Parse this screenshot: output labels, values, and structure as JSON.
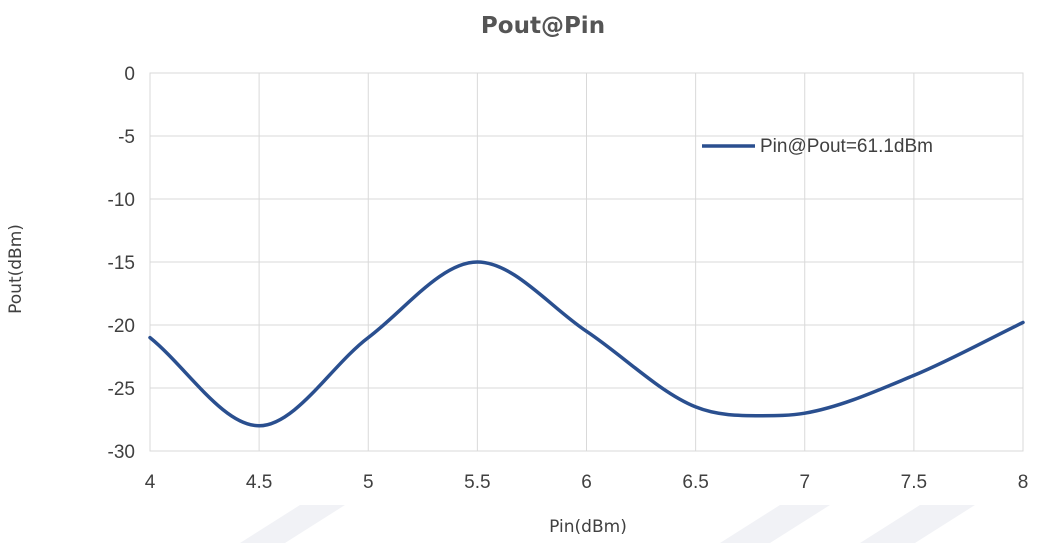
{
  "chart_data": {
    "type": "line",
    "title": "Pout@Pin",
    "xlabel": "Pin(dBm)",
    "ylabel": "Pout(dBm)",
    "xlim": [
      4,
      8
    ],
    "ylim": [
      -30,
      0
    ],
    "x_ticks": [
      "4",
      "4.5",
      "5",
      "5.5",
      "6",
      "6.5",
      "7",
      "7.5",
      "8"
    ],
    "y_ticks": [
      "0",
      "-5",
      "-10",
      "-15",
      "-20",
      "-25",
      "-30"
    ],
    "grid": true,
    "legend_position": "top-right",
    "series": [
      {
        "name": "Pin@Pout=61.1dBm",
        "color": "#2a4f8f",
        "x": [
          4,
          4.5,
          5,
          5.5,
          6,
          6.5,
          6.8,
          7,
          7.5,
          8
        ],
        "y": [
          -21,
          -28,
          -21,
          -15,
          -20.5,
          -26.5,
          -27.2,
          -27,
          -24,
          -19.8
        ]
      }
    ]
  }
}
